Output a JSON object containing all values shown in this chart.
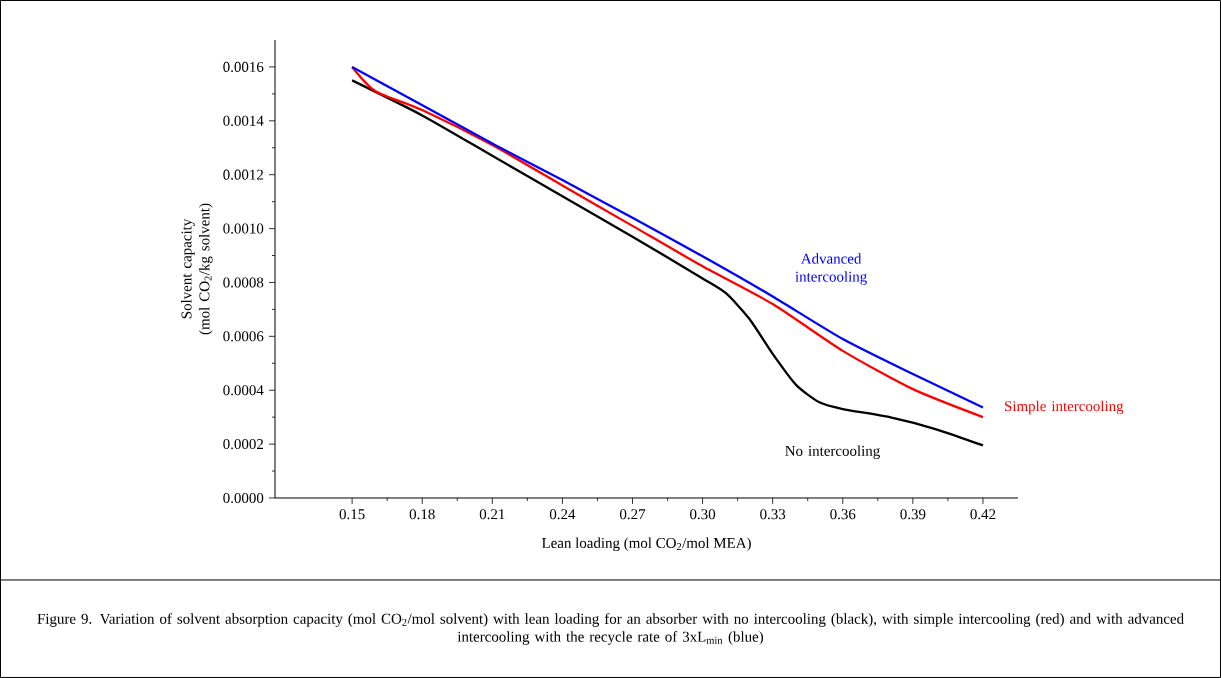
{
  "chart_data": {
    "type": "line",
    "xlabel": "Lean loading (mol CO$_{2}$/mol MEA)",
    "ylabel": "Solvent capacity (mol CO$_{2}$/kg solvent)",
    "annotations": [
      "Figure 9. Variation of solvent absorption capacity (mol CO$_{2}$/mol solvent) with lean loading for an absorber with no intercooling (black), with simple intercooling (red) and with advanced intercooling with the recycle rate of 3xL$_{min}$ (blue)"
    ],
    "xlim": [
      0.117,
      0.435
    ],
    "ylim": [
      0,
      0.0017
    ],
    "xticks": [
      {
        "value": 0.15,
        "label": "0.15"
      },
      {
        "value": 0.18,
        "label": "0.18"
      },
      {
        "value": 0.21,
        "label": "0.21"
      },
      {
        "value": 0.24,
        "label": "0.24"
      },
      {
        "value": 0.27,
        "label": "0.27"
      },
      {
        "value": 0.3,
        "label": "0.30"
      },
      {
        "value": 0.33,
        "label": "0.33"
      },
      {
        "value": 0.36,
        "label": "0.36"
      },
      {
        "value": 0.39,
        "label": "0.39"
      },
      {
        "value": 0.42,
        "label": "0.42"
      }
    ],
    "yticks": [
      {
        "value": 0,
        "label": "0.0000"
      },
      {
        "value": 0.0002,
        "label": "0.0002"
      },
      {
        "value": 0.0004,
        "label": "0.0004"
      },
      {
        "value": 0.0006,
        "label": "0.0006"
      },
      {
        "value": 0.0008,
        "label": "0.0008"
      },
      {
        "value": 0.001,
        "label": "0.0010"
      },
      {
        "value": 0.0012,
        "label": "0.0012"
      },
      {
        "value": 0.0014,
        "label": "0.0014"
      },
      {
        "value": 0.0016,
        "label": "0.0016"
      }
    ],
    "grid": false,
    "legend": false,
    "marker": "none",
    "line_style": "solid",
    "series": [
      {
        "name": "No intercooling",
        "color": "#000000",
        "x": [
          0.15,
          0.18,
          0.21,
          0.24,
          0.27,
          0.3,
          0.31,
          0.32,
          0.33,
          0.34,
          0.35,
          0.36,
          0.38,
          0.4,
          0.42
        ],
        "values": [
          0.00155,
          0.00142,
          0.00127,
          0.00112,
          0.00097,
          0.000815,
          0.00076,
          0.000665,
          0.000535,
          0.00042,
          0.000355,
          0.00033,
          0.0003,
          0.000255,
          0.000195
        ]
      },
      {
        "name": "Simple intercooling",
        "color": "#ff0000",
        "x": [
          0.15,
          0.16,
          0.18,
          0.21,
          0.24,
          0.27,
          0.3,
          0.33,
          0.36,
          0.39,
          0.42
        ],
        "values": [
          0.0016,
          0.00151,
          0.00144,
          0.00131,
          0.00116,
          0.00101,
          0.00086,
          0.00072,
          0.000546,
          0.000404,
          0.0003
        ]
      },
      {
        "name": "Advanced intercooling",
        "color": "#0000ff",
        "x": [
          0.15,
          0.21,
          0.24,
          0.27,
          0.3,
          0.33,
          0.36,
          0.39,
          0.42
        ],
        "values": [
          0.0016,
          0.001316,
          0.00118,
          0.00104,
          0.000897,
          0.000748,
          0.00059,
          0.00046,
          0.000336
        ]
      }
    ]
  }
}
